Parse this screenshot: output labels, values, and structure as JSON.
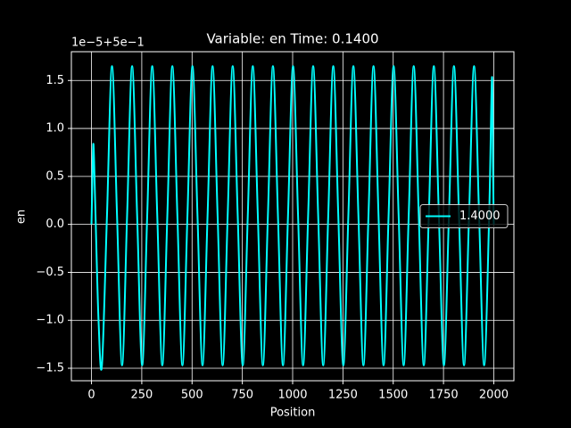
{
  "chart_data": {
    "type": "line",
    "title": "Variable: en Time: 0.1400",
    "x_label": "Position",
    "y_label": "en",
    "y_offset_label": "1e−5+5e−1",
    "x": [
      0,
      5,
      10,
      20,
      35,
      52,
      77,
      102,
      127,
      152,
      177,
      202,
      227,
      252,
      277,
      302,
      327,
      352,
      377,
      402,
      427,
      452,
      477,
      502,
      527,
      552,
      577,
      602,
      627,
      652,
      677,
      702,
      727,
      752,
      777,
      802,
      827,
      852,
      877,
      902,
      927,
      952,
      977,
      1002,
      1027,
      1052,
      1077,
      1102,
      1127,
      1152,
      1177,
      1202,
      1227,
      1252,
      1277,
      1302,
      1327,
      1352,
      1377,
      1402,
      1427,
      1452,
      1477,
      1502,
      1527,
      1552,
      1577,
      1602,
      1627,
      1652,
      1677,
      1702,
      1727,
      1752,
      1777,
      1802,
      1827,
      1852,
      1877,
      1902,
      1927,
      1952,
      1977,
      1991,
      1996,
      2000
    ],
    "series": [
      {
        "name": "1.4000",
        "color": "#00ffff",
        "values": [
          0,
          0.5,
          0.83,
          0.1,
          -1.0,
          -1.47,
          0.09,
          1.65,
          0.09,
          -1.47,
          0.09,
          1.65,
          0.09,
          -1.47,
          0.09,
          1.65,
          0.09,
          -1.47,
          0.09,
          1.65,
          0.09,
          -1.47,
          0.09,
          1.65,
          0.09,
          -1.47,
          0.09,
          1.65,
          0.09,
          -1.47,
          0.09,
          1.65,
          0.09,
          -1.47,
          0.09,
          1.65,
          0.09,
          -1.47,
          0.09,
          1.65,
          0.09,
          -1.47,
          0.09,
          1.65,
          0.09,
          -1.47,
          0.09,
          1.65,
          0.09,
          -1.47,
          0.09,
          1.65,
          0.09,
          -1.47,
          0.09,
          1.65,
          0.09,
          -1.47,
          0.09,
          1.65,
          0.09,
          -1.47,
          0.09,
          1.65,
          0.09,
          -1.47,
          0.09,
          1.65,
          0.09,
          -1.47,
          0.09,
          1.65,
          0.09,
          -1.47,
          0.09,
          1.65,
          0.09,
          -1.47,
          0.09,
          1.65,
          0.09,
          -1.47,
          0.09,
          1.53,
          0.6,
          0
        ]
      }
    ],
    "xlim": [
      -100,
      2100
    ],
    "ylim": [
      -1.63,
      1.8
    ],
    "xticks": [
      0,
      250,
      500,
      750,
      1000,
      1250,
      1500,
      1750,
      2000
    ],
    "yticks": [
      {
        "value": -1.5,
        "label": "−1.5"
      },
      {
        "value": -1.0,
        "label": "−1.0"
      },
      {
        "value": -0.5,
        "label": "−0.5"
      },
      {
        "value": 0,
        "label": "0.0"
      },
      0.5,
      {
        "value": 1.0,
        "label": "1.0"
      },
      1.5
    ],
    "grid": true,
    "legend": "center right"
  }
}
